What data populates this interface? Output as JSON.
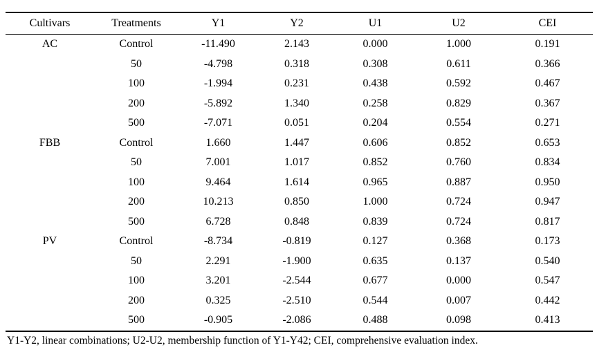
{
  "table": {
    "columns": [
      "Cultivars",
      "Treatments",
      "Y1",
      "Y2",
      "U1",
      "U2",
      "CEI"
    ],
    "rows": [
      [
        "AC",
        "Control",
        "-11.490",
        "2.143",
        "0.000",
        "1.000",
        "0.191"
      ],
      [
        "",
        "50",
        "-4.798",
        "0.318",
        "0.308",
        "0.611",
        "0.366"
      ],
      [
        "",
        "100",
        "-1.994",
        "0.231",
        "0.438",
        "0.592",
        "0.467"
      ],
      [
        "",
        "200",
        "-5.892",
        "1.340",
        "0.258",
        "0.829",
        "0.367"
      ],
      [
        "",
        "500",
        "-7.071",
        "0.051",
        "0.204",
        "0.554",
        "0.271"
      ],
      [
        "FBB",
        "Control",
        "1.660",
        "1.447",
        "0.606",
        "0.852",
        "0.653"
      ],
      [
        "",
        "50",
        "7.001",
        "1.017",
        "0.852",
        "0.760",
        "0.834"
      ],
      [
        "",
        "100",
        "9.464",
        "1.614",
        "0.965",
        "0.887",
        "0.950"
      ],
      [
        "",
        "200",
        "10.213",
        "0.850",
        "1.000",
        "0.724",
        "0.947"
      ],
      [
        "",
        "500",
        "6.728",
        "0.848",
        "0.839",
        "0.724",
        "0.817"
      ],
      [
        "PV",
        "Control",
        "-8.734",
        "-0.819",
        "0.127",
        "0.368",
        "0.173"
      ],
      [
        "",
        "50",
        "2.291",
        "-1.900",
        "0.635",
        "0.137",
        "0.540"
      ],
      [
        "",
        "100",
        "3.201",
        "-2.544",
        "0.677",
        "0.000",
        "0.547"
      ],
      [
        "",
        "200",
        "0.325",
        "-2.510",
        "0.544",
        "0.007",
        "0.442"
      ],
      [
        "",
        "500",
        "-0.905",
        "-2.086",
        "0.488",
        "0.098",
        "0.413"
      ]
    ],
    "footnote": "Y1-Y2, linear combinations; U2-U2, membership function of Y1-Y42; CEI, comprehensive evaluation index."
  }
}
